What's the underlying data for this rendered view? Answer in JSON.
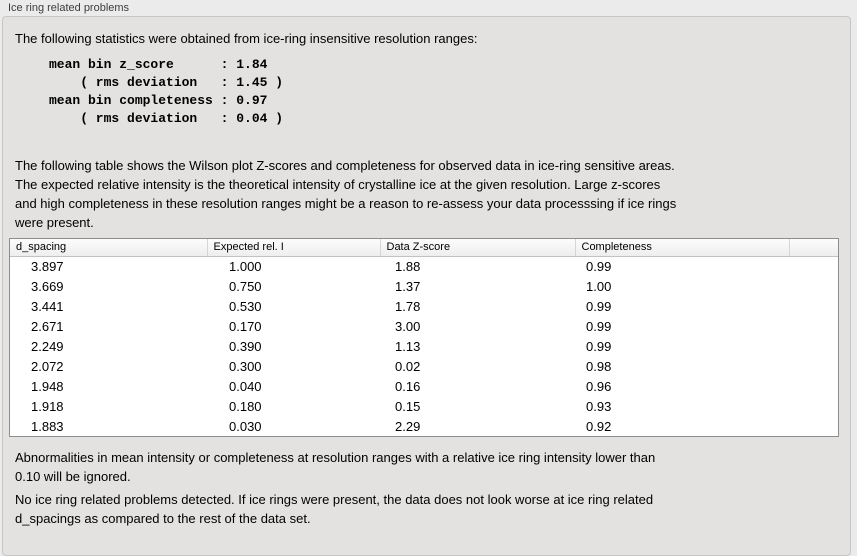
{
  "panel": {
    "title": "Ice ring related problems"
  },
  "intro": {
    "text": "The following statistics were obtained from ice-ring insensitive resolution ranges:"
  },
  "stats_block": {
    "text": "mean bin z_score      : 1.84\n    ( rms deviation   : 1.45 )\nmean bin completeness : 0.97\n    ( rms deviation   : 0.04 )",
    "mean_bin_z_score": "1.84",
    "z_score_rms_deviation": "1.45",
    "mean_bin_completeness": "0.97",
    "completeness_rms_deviation": "0.04"
  },
  "description": {
    "text": "The following table shows the Wilson plot Z-scores and completeness for observed data in ice-ring sensitive areas.\nThe expected relative intensity is the theoretical intensity of crystalline ice at the given resolution. Large z-scores\nand high completeness in these resolution ranges might be a reason to re-assess your data processsing if ice rings\nwere present."
  },
  "table": {
    "columns": [
      "d_spacing",
      "Expected rel. I",
      "Data Z-score",
      "Completeness"
    ],
    "rows": [
      [
        "3.897",
        "1.000",
        "1.88",
        "0.99"
      ],
      [
        "3.669",
        "0.750",
        "1.37",
        "1.00"
      ],
      [
        "3.441",
        "0.530",
        "1.78",
        "0.99"
      ],
      [
        "2.671",
        "0.170",
        "3.00",
        "0.99"
      ],
      [
        "2.249",
        "0.390",
        "1.13",
        "0.99"
      ],
      [
        "2.072",
        "0.300",
        "0.02",
        "0.98"
      ],
      [
        "1.948",
        "0.040",
        "0.16",
        "0.96"
      ],
      [
        "1.918",
        "0.180",
        "0.15",
        "0.93"
      ],
      [
        "1.883",
        "0.030",
        "2.29",
        "0.92"
      ]
    ]
  },
  "notes": {
    "ignore_note": "Abnormalities in mean intensity or completeness at resolution ranges with a relative ice ring intensity lower than\n0.10 will be ignored.",
    "conclusion": "No ice ring related problems detected. If ice rings were present, the data does not look worse at ice ring related\nd_spacings as compared to the rest of the data set."
  },
  "colors": {
    "window_background": "#ecebeb",
    "groupbox_background": "#e3e2e0",
    "groupbox_border": "#c7c6c4",
    "table_background": "#ffffff",
    "table_border": "#8d8d8d",
    "text": "#000000",
    "label_text": "#3d3d3d"
  }
}
